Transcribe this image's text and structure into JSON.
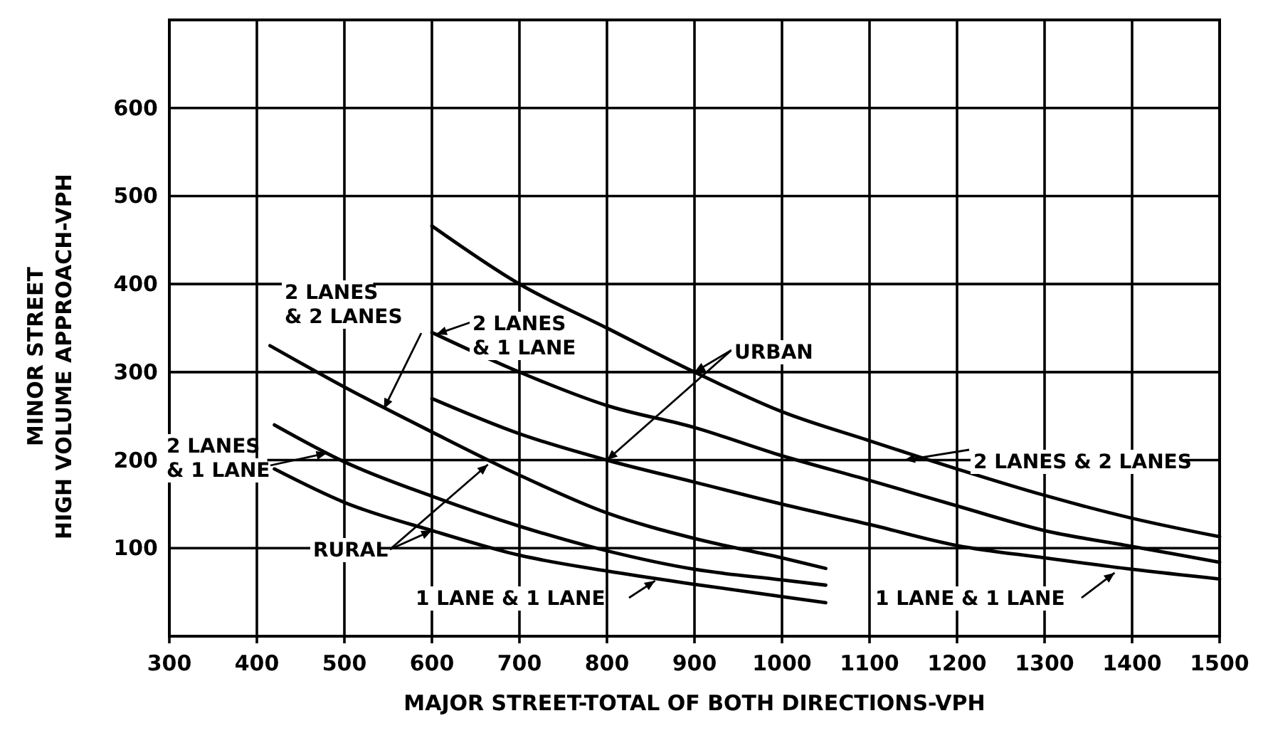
{
  "chart_data": {
    "type": "line",
    "xlabel": "MAJOR STREET-TOTAL OF BOTH DIRECTIONS-VPH",
    "ylabel": "MINOR STREET\nHIGH VOLUME APPROACH-VPH",
    "xlim": [
      300,
      1500
    ],
    "xticks": [
      300,
      400,
      500,
      600,
      700,
      800,
      900,
      1000,
      1100,
      1200,
      1300,
      1400,
      1500
    ],
    "ylim": [
      0,
      700
    ],
    "yticks": [
      {
        "value": 0,
        "label": null
      },
      100,
      200,
      300,
      400,
      500,
      600,
      {
        "value": 700,
        "label": null
      }
    ],
    "grid": true,
    "marker": "none",
    "line_style": "solid",
    "series": [
      {
        "color": "#000000",
        "x": [
          600,
          700,
          800,
          900,
          1000,
          1100,
          1200,
          1300,
          1400,
          1500
        ],
        "values": [
          466,
          400,
          350,
          300,
          255,
          222,
          190,
          160,
          134,
          113
        ]
      },
      {
        "color": "#000000",
        "x": [
          600,
          700,
          800,
          900,
          1000,
          1100,
          1200,
          1300,
          1400,
          1500
        ],
        "values": [
          345,
          300,
          262,
          237,
          205,
          177,
          148,
          120,
          102,
          84
        ]
      },
      {
        "color": "#000000",
        "x": [
          600,
          700,
          800,
          900,
          1000,
          1100,
          1200,
          1300,
          1400,
          1500
        ],
        "values": [
          270,
          230,
          200,
          175,
          150,
          127,
          103,
          89,
          76,
          65
        ]
      },
      {
        "color": "#000000",
        "x": [
          415,
          500,
          600,
          700,
          800,
          900,
          1000,
          1050
        ],
        "values": [
          330,
          283,
          232,
          183,
          140,
          111,
          89,
          77
        ]
      },
      {
        "color": "#000000",
        "x": [
          420,
          500,
          600,
          700,
          800,
          900,
          1000,
          1050
        ],
        "values": [
          240,
          198,
          159,
          125,
          97,
          76,
          64,
          58
        ]
      },
      {
        "color": "#000000",
        "x": [
          420,
          500,
          600,
          700,
          800,
          900,
          1000,
          1050
        ],
        "values": [
          190,
          152,
          120,
          92,
          74,
          59,
          45,
          38
        ]
      }
    ],
    "annotations": [
      {
        "text": "2 LANES\n& 2 LANES",
        "x": 545,
        "y": 258
      },
      {
        "text": "2 LANES\n& 1 LANE",
        "x": 605,
        "y": 343
      },
      {
        "text": "URBAN",
        "x": 900,
        "y": 300
      },
      {
        "text": "2 LANES & 2 LANES",
        "x": 1140,
        "y": 200
      },
      {
        "text": "2 LANES\n& 1 LANE",
        "x": 480,
        "y": 208
      },
      {
        "text": "RURAL",
        "x": 600,
        "y": 120
      },
      {
        "text": "1 LANE & 1 LANE",
        "x": 855,
        "y": 63
      },
      {
        "text": "1 LANE & 1 LANE",
        "x": 1380,
        "y": 72
      }
    ]
  }
}
